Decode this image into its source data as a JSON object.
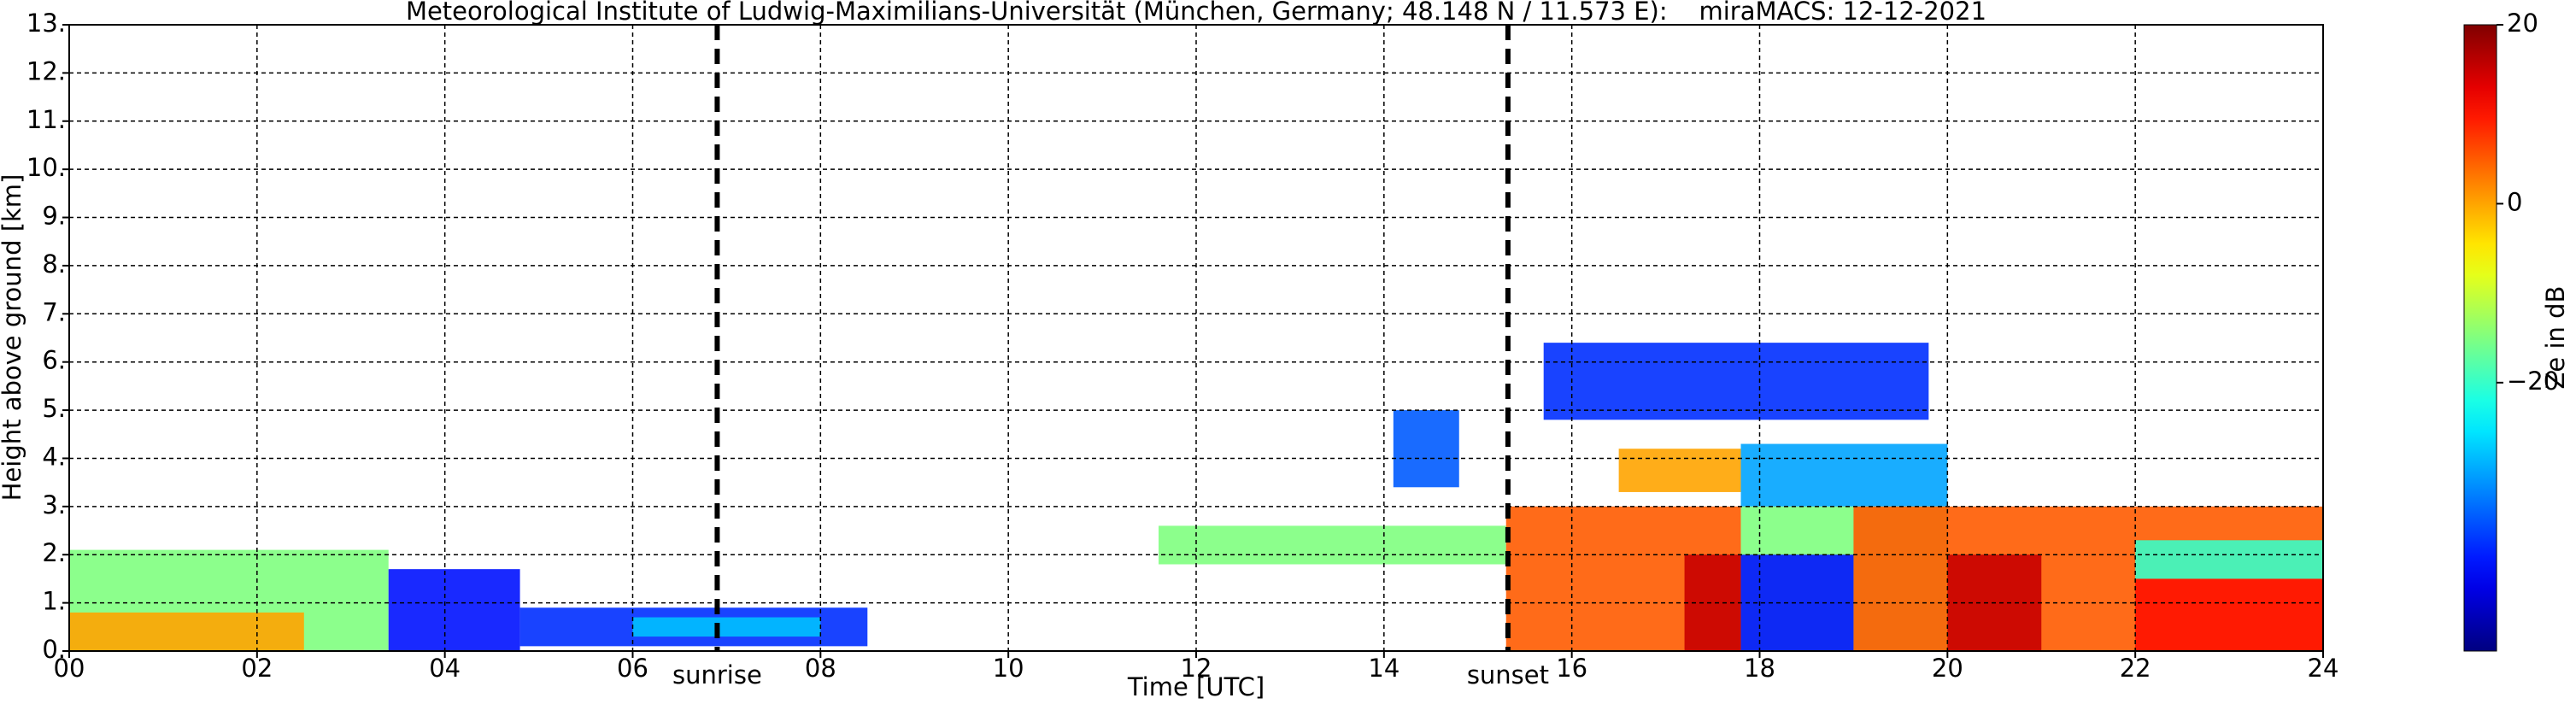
{
  "chart_data": {
    "type": "heatmap",
    "title": "Meteorological Institute of Ludwig-Maximilians-Universität (München, Germany; 48.148 N / 11.573 E):    miraMACS: 12-12-2021",
    "x_label": "Time [UTC]",
    "y_label": "Height above ground [km]",
    "colorbar_label": "Ze in dB",
    "xlim": [
      0,
      24
    ],
    "ylim": [
      0,
      13
    ],
    "clim": [
      -50,
      20
    ],
    "grid": true,
    "xticks": [
      {
        "value": 0,
        "label": "00"
      },
      {
        "value": 2,
        "label": "02"
      },
      {
        "value": 4,
        "label": "04"
      },
      {
        "value": 6,
        "label": "06"
      },
      {
        "value": 8,
        "label": "08"
      },
      {
        "value": 10,
        "label": "10"
      },
      {
        "value": 12,
        "label": "12"
      },
      {
        "value": 14,
        "label": "14"
      },
      {
        "value": 16,
        "label": "16"
      },
      {
        "value": 18,
        "label": "18"
      },
      {
        "value": 20,
        "label": "20"
      },
      {
        "value": 22,
        "label": "22"
      },
      {
        "value": 24,
        "label": "24"
      }
    ],
    "yticks": [
      {
        "value": 0,
        "label": "0."
      },
      {
        "value": 1,
        "label": "1."
      },
      {
        "value": 2,
        "label": "2."
      },
      {
        "value": 3,
        "label": "3."
      },
      {
        "value": 4,
        "label": "4."
      },
      {
        "value": 5,
        "label": "5."
      },
      {
        "value": 6,
        "label": "6."
      },
      {
        "value": 7,
        "label": "7."
      },
      {
        "value": 8,
        "label": "8."
      },
      {
        "value": 9,
        "label": "9."
      },
      {
        "value": 10,
        "label": "10."
      },
      {
        "value": 11,
        "label": "11."
      },
      {
        "value": 12,
        "label": "12."
      },
      {
        "value": 13,
        "label": "13."
      }
    ],
    "cticks": [
      20,
      0,
      {
        "value": -20,
        "label": "−20"
      }
    ],
    "annotations": [
      {
        "text": "sunrise",
        "x": 6.9
      },
      {
        "text": "sunset",
        "x": 15.32
      }
    ],
    "regions": [
      {
        "x0": 0,
        "x1": 3.4,
        "y0": 0,
        "y1": 2.1,
        "value": -15
      },
      {
        "x0": 0,
        "x1": 2.5,
        "y0": 0,
        "y1": 0.8,
        "value": 0
      },
      {
        "x0": 3.4,
        "x1": 4.8,
        "y0": 0,
        "y1": 1.7,
        "value": -40
      },
      {
        "x0": 4.8,
        "x1": 8.5,
        "y0": 0.1,
        "y1": 0.9,
        "value": -38
      },
      {
        "x0": 6,
        "x1": 8,
        "y0": 0.3,
        "y1": 0.7,
        "value": -28
      },
      {
        "x0": 11.6,
        "x1": 15.3,
        "y0": 1.8,
        "y1": 2.6,
        "value": -15
      },
      {
        "x0": 14.1,
        "x1": 14.8,
        "y0": 3.4,
        "y1": 5,
        "value": -35
      },
      {
        "x0": 15.3,
        "x1": 17.8,
        "y0": 0,
        "y1": 3,
        "value": 5
      },
      {
        "x0": 17.2,
        "x1": 17.8,
        "y0": 0,
        "y1": 2,
        "value": 15
      },
      {
        "x0": 15.7,
        "x1": 19.8,
        "y0": 4.8,
        "y1": 6.4,
        "value": -38
      },
      {
        "x0": 16.5,
        "x1": 17.8,
        "y0": 3.3,
        "y1": 4.2,
        "value": 0
      },
      {
        "x0": 17.8,
        "x1": 20,
        "y0": 3,
        "y1": 4.3,
        "value": -30
      },
      {
        "x0": 17.8,
        "x1": 20,
        "y0": 0,
        "y1": 3,
        "value": -15
      },
      {
        "x0": 19,
        "x1": 24,
        "y0": 0,
        "y1": 3,
        "value": 5
      },
      {
        "x0": 20,
        "x1": 21,
        "y0": 0,
        "y1": 2,
        "value": 15
      },
      {
        "x0": 22,
        "x1": 24,
        "y0": 0,
        "y1": 1.5,
        "value": 10
      },
      {
        "x0": 22,
        "x1": 24,
        "y0": 1.5,
        "y1": 2.3,
        "value": -20
      },
      {
        "x0": 17.8,
        "x1": 19,
        "y0": 0,
        "y1": 2,
        "value": -40
      }
    ]
  }
}
